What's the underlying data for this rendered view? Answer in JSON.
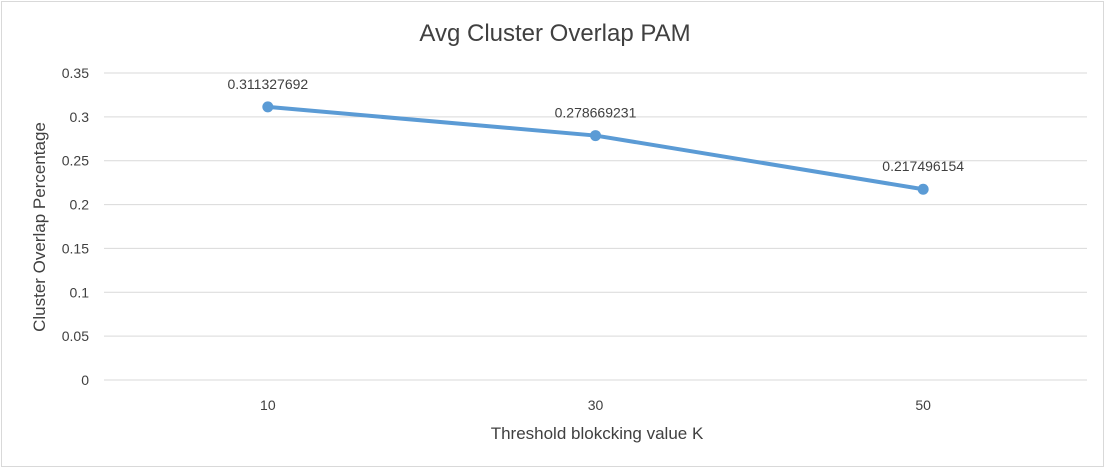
{
  "chart_data": {
    "type": "line",
    "title": "Avg Cluster Overlap PAM",
    "xlabel": "Threshold blokcking value K",
    "ylabel": "Cluster Overlap Percentage",
    "categories": [
      "10",
      "30",
      "50"
    ],
    "series": [
      {
        "values": [
          0.311327692,
          0.278669231,
          0.217496154
        ],
        "color": "#5b9bd5"
      }
    ],
    "data_labels": [
      "0.311327692",
      "0.278669231",
      "0.217496154"
    ],
    "y_ticks": [
      "0",
      "0.05",
      "0.1",
      "0.15",
      "0.2",
      "0.25",
      "0.3",
      "0.35"
    ],
    "ylim": [
      0,
      0.35
    ],
    "grid": true,
    "legend": "none",
    "gridline_color": "#d9d9d9",
    "text_color": "#404040"
  }
}
